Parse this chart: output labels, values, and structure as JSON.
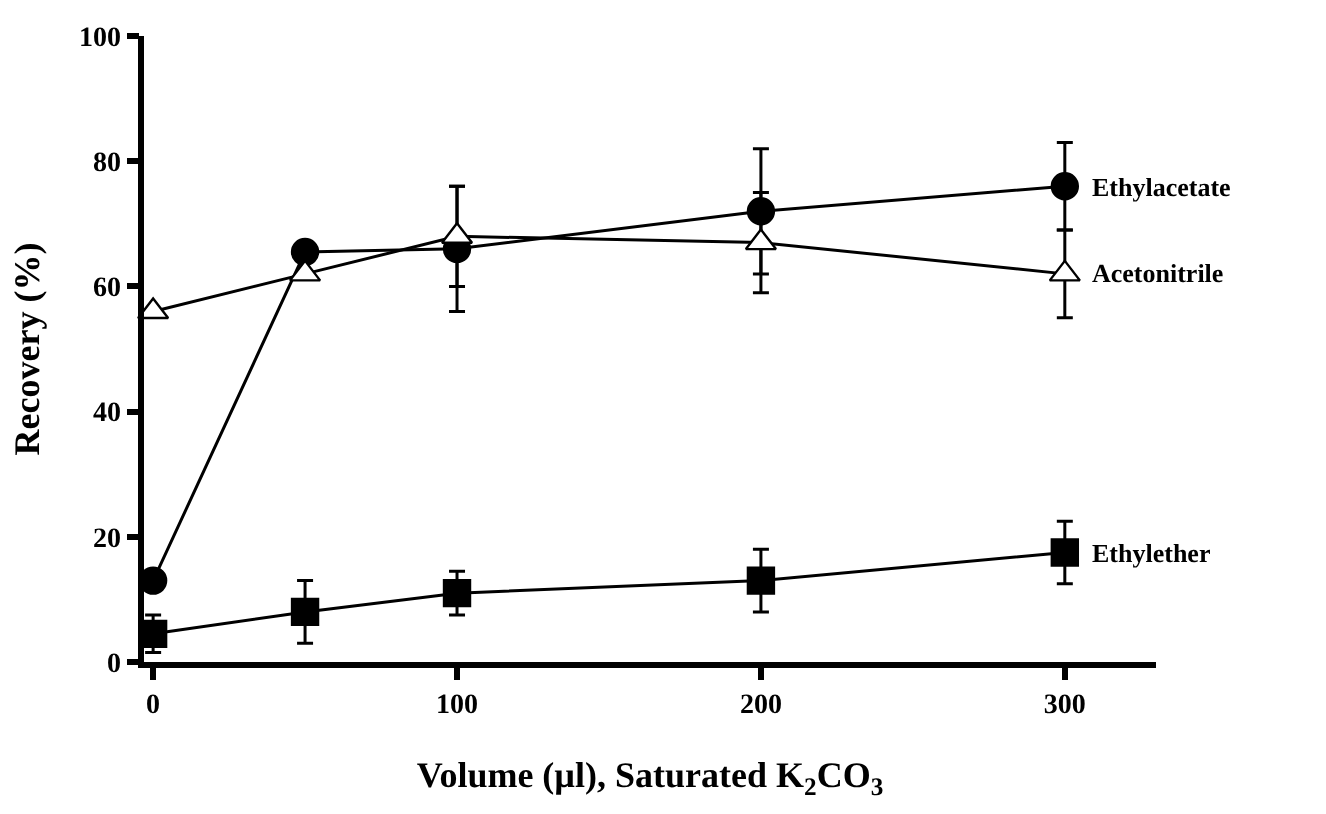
{
  "chart_data": {
    "type": "line",
    "xlabel": "Volume (µl), Saturated K$_{2}$CO$_{3}$",
    "ylabel": "Recovery (%)",
    "x": [
      0,
      50,
      100,
      200,
      300
    ],
    "xlim": [
      -3,
      330
    ],
    "xticks": [
      0,
      100,
      200,
      300
    ],
    "ylim": [
      0,
      100
    ],
    "yticks": [
      0,
      20,
      40,
      60,
      80,
      100
    ],
    "legend": false,
    "line_style": "solid",
    "series": [
      {
        "name": "Ethylacetate",
        "color": "#000000",
        "marker": "circle",
        "values": [
          13,
          65.5,
          66,
          72,
          76
        ],
        "errors": [
          null,
          null,
          10,
          10,
          7
        ]
      },
      {
        "name": "Acetonitrile",
        "color": "#000000",
        "marker": "triangle-open",
        "values": [
          56,
          62,
          68,
          67,
          62
        ],
        "errors": [
          null,
          null,
          8,
          8,
          7
        ]
      },
      {
        "name": "Ethylether",
        "color": "#000000",
        "marker": "square",
        "values": [
          4.5,
          8,
          11,
          13,
          17.5
        ],
        "errors": [
          3,
          5,
          3.5,
          5,
          5
        ]
      }
    ]
  }
}
